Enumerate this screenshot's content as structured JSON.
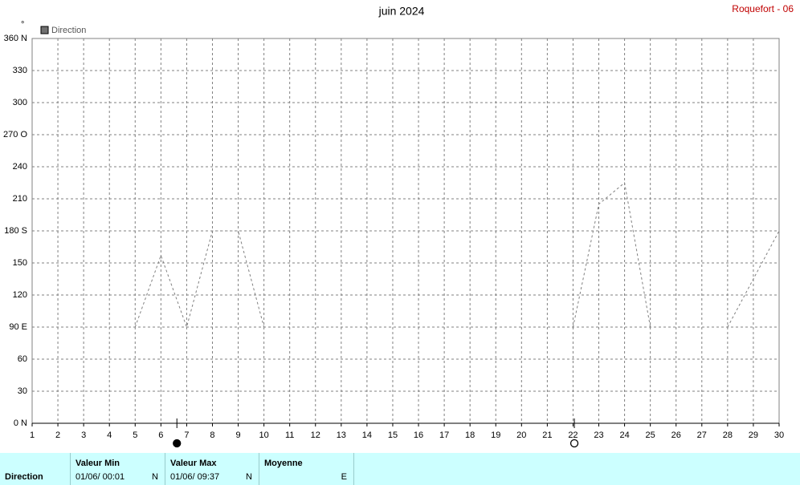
{
  "chart_data": {
    "type": "line",
    "title": "juin 2024",
    "location": "Roquefort - 06",
    "unit": "°",
    "x": [
      1,
      2,
      3,
      4,
      5,
      6,
      7,
      8,
      9,
      10,
      11,
      12,
      13,
      14,
      15,
      16,
      17,
      18,
      19,
      20,
      21,
      22,
      23,
      24,
      25,
      26,
      27,
      28,
      29,
      30
    ],
    "series": [
      {
        "name": "Direction",
        "color": "#808080",
        "values": [
          null,
          null,
          null,
          null,
          90,
          157,
          90,
          180,
          180,
          90,
          null,
          null,
          null,
          null,
          null,
          null,
          null,
          null,
          null,
          null,
          null,
          90,
          205,
          225,
          90,
          null,
          null,
          90,
          135,
          180
        ]
      }
    ],
    "xlim": [
      1,
      30
    ],
    "ylim": [
      0,
      360
    ],
    "yticks": [
      {
        "value": 0,
        "label": "0 N"
      },
      30,
      60,
      {
        "value": 90,
        "label": "90 E"
      },
      120,
      150,
      {
        "value": 180,
        "label": "180 S"
      },
      210,
      240,
      {
        "value": 270,
        "label": "270 O"
      },
      300,
      330,
      {
        "value": 360,
        "label": "360 N"
      }
    ],
    "grid": true,
    "new_moon": 6.62,
    "full_moon": 22.05
  },
  "summary": {
    "label": "Direction",
    "min": {
      "title": "Valeur Min",
      "date": "01/06/  00:01",
      "value": "N"
    },
    "max": {
      "title": "Valeur Max",
      "date": "01/06/  09:37",
      "value": "N"
    },
    "mean": {
      "title": "Moyenne",
      "value": "E"
    }
  }
}
